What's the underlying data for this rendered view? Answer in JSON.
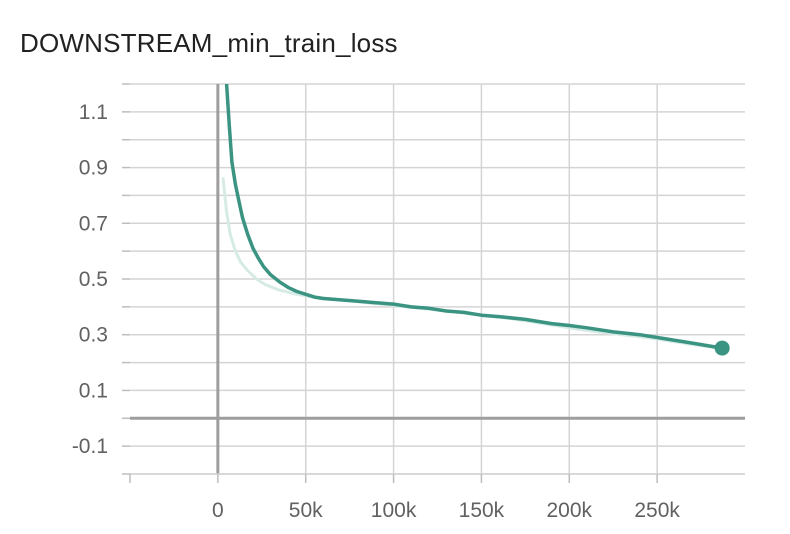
{
  "chart_data": {
    "type": "line",
    "title": "DOWNSTREAM_min_train_loss",
    "xlabel": "",
    "ylabel": "",
    "xlim": [
      -50000,
      300000
    ],
    "ylim": [
      -0.2,
      1.2
    ],
    "x_ticks": [
      0,
      50000,
      100000,
      150000,
      200000,
      250000
    ],
    "x_tick_labels": [
      "0",
      "50k",
      "100k",
      "150k",
      "200k",
      "250k"
    ],
    "y_ticks": [
      1.1,
      0.9,
      0.7,
      0.5,
      0.3,
      0.1,
      -0.1
    ],
    "y_tick_labels": [
      "1.1",
      "0.9",
      "0.7",
      "0.5",
      "0.3",
      "0.1",
      "-0.1"
    ],
    "grid": true,
    "colors": {
      "smoothed": "#3b9481",
      "raw": "#d6ebe5",
      "axis": "#9e9e9e",
      "grid": "#d4d4d4"
    },
    "series": [
      {
        "role": "raw",
        "x": [
          3000,
          5000,
          7000,
          10000,
          13000,
          17000,
          22000,
          27000,
          35000,
          45000,
          55000,
          70000,
          85000,
          100000,
          115000,
          130000,
          150000,
          170000,
          190000,
          210000,
          230000,
          250000,
          270000,
          287000
        ],
        "y": [
          0.86,
          0.74,
          0.66,
          0.6,
          0.56,
          0.53,
          0.5,
          0.48,
          0.46,
          0.445,
          0.435,
          0.425,
          0.415,
          0.405,
          0.395,
          0.385,
          0.37,
          0.355,
          0.335,
          0.315,
          0.3,
          0.285,
          0.265,
          0.25
        ]
      },
      {
        "role": "smoothed",
        "x": [
          5000,
          6500,
          8000,
          10000,
          12000,
          14000,
          17000,
          20000,
          23000,
          26000,
          30000,
          35000,
          40000,
          45000,
          50000,
          55000,
          60000,
          70000,
          80000,
          90000,
          100000,
          110000,
          120000,
          130000,
          140000,
          150000,
          160000,
          175000,
          190000,
          200000,
          210000,
          225000,
          240000,
          255000,
          270000,
          287000
        ],
        "y": [
          1.2,
          1.05,
          0.92,
          0.84,
          0.78,
          0.72,
          0.66,
          0.61,
          0.575,
          0.545,
          0.515,
          0.49,
          0.47,
          0.455,
          0.445,
          0.435,
          0.43,
          0.425,
          0.42,
          0.415,
          0.41,
          0.4,
          0.395,
          0.385,
          0.38,
          0.37,
          0.365,
          0.355,
          0.34,
          0.333,
          0.325,
          0.31,
          0.3,
          0.285,
          0.27,
          0.252
        ]
      }
    ]
  }
}
